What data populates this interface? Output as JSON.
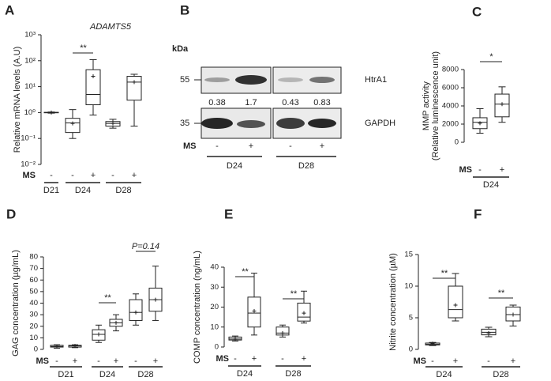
{
  "chart_data": [
    {
      "type": "box",
      "panel": "A",
      "title": "ADAMTS5",
      "y_label": "Relative mRNA levels (A.U)",
      "log_scale": true,
      "ylim": [
        0.01,
        1000
      ],
      "yticks": [
        {
          "value": 0.01,
          "label": "10⁻²"
        },
        {
          "value": 0.1,
          "label": "10⁻¹"
        },
        {
          "value": 1,
          "label": "10⁰"
        },
        {
          "value": 10,
          "label": "10¹"
        },
        {
          "value": 100,
          "label": "10²"
        },
        {
          "value": 1000,
          "label": "10³"
        }
      ],
      "treatment_label": "MS",
      "groups": [
        {
          "name": "D21",
          "boxes": [
            {
              "treatment": "-",
              "min": 0.95,
              "q1": 0.98,
              "median": 1,
              "q3": 1.02,
              "max": 1.05,
              "mean": 1
            }
          ]
        },
        {
          "name": "D24",
          "boxes": [
            {
              "treatment": "-",
              "min": 0.1,
              "q1": 0.17,
              "median": 0.4,
              "q3": 0.6,
              "max": 1.3,
              "mean": 0.38
            },
            {
              "treatment": "+",
              "min": 0.8,
              "q1": 2,
              "median": 5,
              "q3": 45,
              "max": 110,
              "mean": 25
            }
          ]
        },
        {
          "name": "D28",
          "boxes": [
            {
              "treatment": "-",
              "min": 0.25,
              "q1": 0.3,
              "median": 0.38,
              "q3": 0.45,
              "max": 0.55,
              "mean": 0.38
            },
            {
              "treatment": "+",
              "min": 0.3,
              "q1": 3,
              "median": 15,
              "q3": 25,
              "max": 30,
              "mean": 15
            }
          ]
        }
      ],
      "annotations": [
        "**"
      ]
    },
    {
      "type": "blot",
      "panel": "B",
      "unit_label": "kDa",
      "markers": [
        55,
        35
      ],
      "proteins": [
        "HtrA1",
        "GAPDH"
      ],
      "band_ratios": [
        0.38,
        1.7,
        0.43,
        0.83
      ],
      "treatment_label": "MS",
      "treatments": [
        "-",
        "+",
        "-",
        "+"
      ],
      "groups": [
        "D24",
        "D28"
      ]
    },
    {
      "type": "box",
      "panel": "C",
      "y_label": "MMP activity",
      "y_label_sub": "(Relative luminescence unit)",
      "log_scale": false,
      "ylim": [
        0,
        8000
      ],
      "yticks": [
        0,
        2000,
        4000,
        6000,
        8000
      ],
      "treatment_label": "MS",
      "groups": [
        {
          "name": "D24",
          "boxes": [
            {
              "treatment": "-",
              "min": 1000,
              "q1": 1500,
              "median": 2200,
              "q3": 2700,
              "max": 3700,
              "mean": 2100
            },
            {
              "treatment": "+",
              "min": 2200,
              "q1": 2800,
              "median": 4200,
              "q3": 5300,
              "max": 6100,
              "mean": 4200
            }
          ]
        }
      ],
      "annotations": [
        "*"
      ]
    },
    {
      "type": "box",
      "panel": "D",
      "y_label": "GAG concentration (µg/mL)",
      "log_scale": false,
      "ylim": [
        0,
        80
      ],
      "yticks": [
        0,
        10,
        20,
        30,
        40,
        50,
        60,
        70,
        80
      ],
      "treatment_label": "MS",
      "groups": [
        {
          "name": "D21",
          "boxes": [
            {
              "treatment": "-",
              "min": 1,
              "q1": 2,
              "median": 2.5,
              "q3": 3.5,
              "max": 4,
              "mean": 2.5
            },
            {
              "treatment": "+",
              "min": 1.5,
              "q1": 2,
              "median": 3,
              "q3": 3.5,
              "max": 4,
              "mean": 3
            }
          ]
        },
        {
          "name": "D24",
          "boxes": [
            {
              "treatment": "-",
              "min": 6,
              "q1": 8,
              "median": 13,
              "q3": 17,
              "max": 21,
              "mean": 13
            },
            {
              "treatment": "+",
              "min": 16,
              "q1": 20,
              "median": 23,
              "q3": 26,
              "max": 30,
              "mean": 23
            }
          ]
        },
        {
          "name": "D28",
          "boxes": [
            {
              "treatment": "-",
              "min": 21,
              "q1": 25,
              "median": 32,
              "q3": 43,
              "max": 48,
              "mean": 32
            },
            {
              "treatment": "+",
              "min": 25,
              "q1": 33,
              "median": 43,
              "q3": 53,
              "max": 72,
              "mean": 43
            }
          ]
        }
      ],
      "annotations": [
        "**",
        "P=0.14"
      ]
    },
    {
      "type": "box",
      "panel": "E",
      "y_label": "COMP concentration (ng/mL)",
      "log_scale": false,
      "ylim": [
        0,
        40
      ],
      "yticks": [
        0,
        10,
        20,
        30,
        40
      ],
      "treatment_label": "MS",
      "groups": [
        {
          "name": "D24",
          "boxes": [
            {
              "treatment": "-",
              "min": 3,
              "q1": 3.5,
              "median": 4,
              "q3": 5,
              "max": 5.5,
              "mean": 4
            },
            {
              "treatment": "+",
              "min": 6,
              "q1": 10,
              "median": 17,
              "q3": 25,
              "max": 37,
              "mean": 18
            }
          ]
        },
        {
          "name": "D28",
          "boxes": [
            {
              "treatment": "-",
              "min": 5,
              "q1": 6,
              "median": 7,
              "q3": 10,
              "max": 11,
              "mean": 7
            },
            {
              "treatment": "+",
              "min": 12,
              "q1": 13,
              "median": 15,
              "q3": 22,
              "max": 28,
              "mean": 17
            }
          ]
        }
      ],
      "annotations": [
        "**",
        "**"
      ]
    },
    {
      "type": "box",
      "panel": "F",
      "y_label": "Nitrite concentration (µM)",
      "log_scale": false,
      "ylim": [
        0,
        15
      ],
      "yticks": [
        0,
        5,
        10,
        15
      ],
      "treatment_label": "MS",
      "groups": [
        {
          "name": "D24",
          "boxes": [
            {
              "treatment": "-",
              "min": 0.6,
              "q1": 0.7,
              "median": 0.8,
              "q3": 1,
              "max": 1.1,
              "mean": 0.9
            },
            {
              "treatment": "+",
              "min": 4.5,
              "q1": 5,
              "median": 6.3,
              "q3": 10,
              "max": 12,
              "mean": 7
            }
          ]
        },
        {
          "name": "D28",
          "boxes": [
            {
              "treatment": "-",
              "min": 2,
              "q1": 2.3,
              "median": 2.7,
              "q3": 3.2,
              "max": 3.5,
              "mean": 2.6
            },
            {
              "treatment": "+",
              "min": 3.7,
              "q1": 4.5,
              "median": 5.5,
              "q3": 6.7,
              "max": 7,
              "mean": 5.5
            }
          ]
        }
      ],
      "annotations": [
        "**",
        "**"
      ]
    }
  ]
}
